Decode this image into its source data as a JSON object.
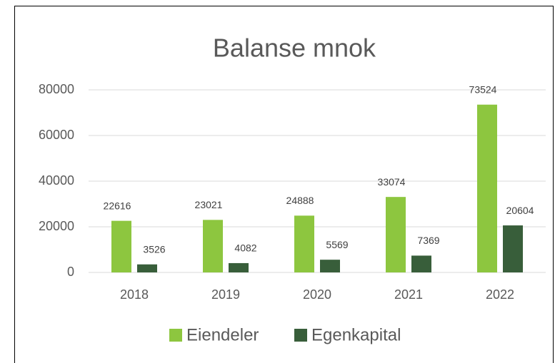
{
  "chart_data": {
    "type": "bar",
    "title": "Balanse mnok",
    "categories": [
      "2018",
      "2019",
      "2020",
      "2021",
      "2022"
    ],
    "series": [
      {
        "name": "Eiendeler",
        "color": "#8dc63f",
        "values": [
          22616,
          23021,
          24888,
          33074,
          73524
        ]
      },
      {
        "name": "Egenkapital",
        "color": "#385e3a",
        "values": [
          3526,
          4082,
          5569,
          7369,
          20604
        ]
      }
    ],
    "ylim": [
      0,
      80000
    ],
    "yticks": [
      0,
      20000,
      40000,
      60000,
      80000
    ],
    "grid": true,
    "legend": "bottom"
  }
}
